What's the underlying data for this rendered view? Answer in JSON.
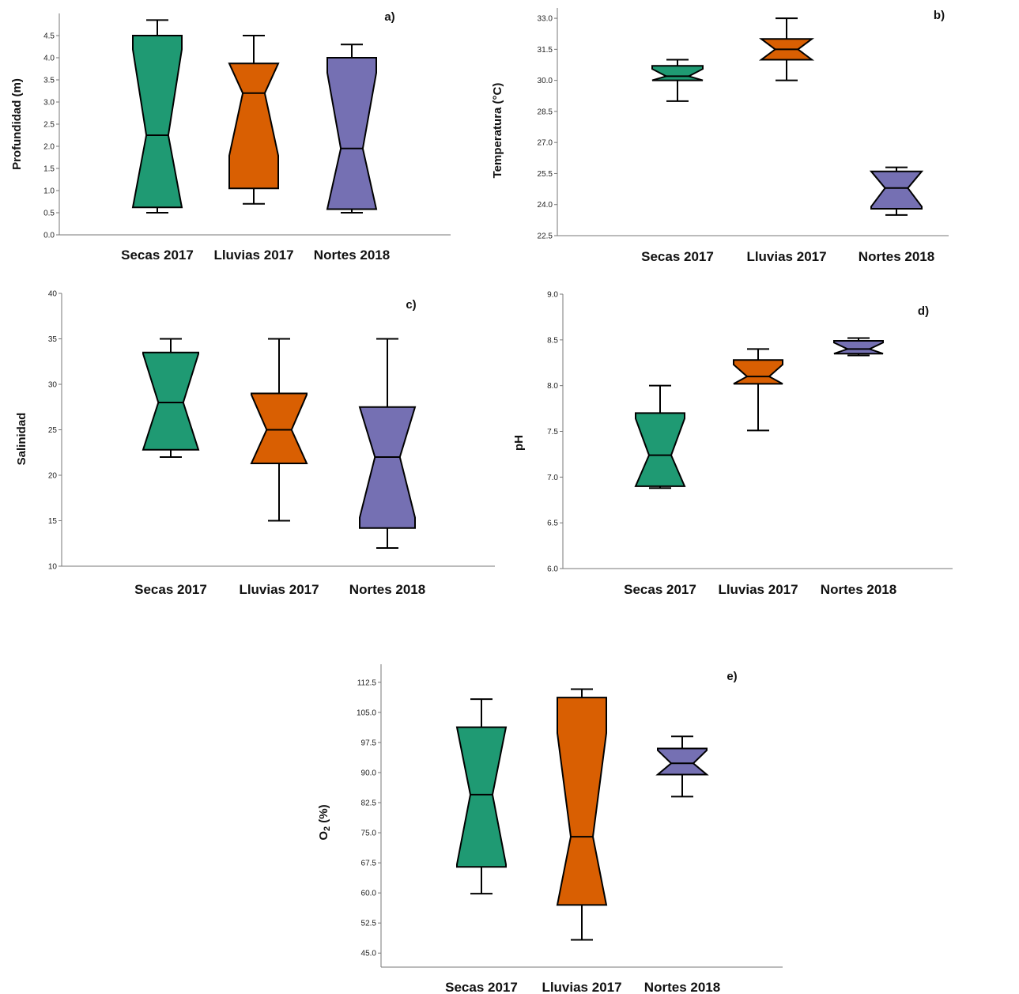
{
  "colors": {
    "Secas 2017": "#1f9a73",
    "Lluvias 2017": "#d95f02",
    "Nortes 2018": "#7570b3",
    "stroke": "#000000"
  },
  "chart_data": [
    {
      "type": "boxplot",
      "panel_label": "a)",
      "ylabel": "Profundidad (m)",
      "categories": [
        "Secas 2017",
        "Lluvias 2017",
        "Nortes 2018"
      ],
      "yticks": [
        "0.0",
        "0.5",
        "1.0",
        "1.5",
        "2.0",
        "2.5",
        "3.0",
        "3.5",
        "4.0",
        "4.5"
      ],
      "ylim": [
        0,
        5.0
      ],
      "boxes": [
        {
          "category": "Secas 2017",
          "min": 0.5,
          "q1": 0.62,
          "median": 2.25,
          "q3": 4.5,
          "max": 4.85
        },
        {
          "category": "Lluvias 2017",
          "min": 0.7,
          "q1": 1.05,
          "median": 3.2,
          "q3": 3.87,
          "max": 4.5
        },
        {
          "category": "Nortes 2018",
          "min": 0.5,
          "q1": 0.58,
          "median": 1.95,
          "q3": 4.0,
          "max": 4.3
        }
      ]
    },
    {
      "type": "boxplot",
      "panel_label": "b)",
      "ylabel": "Temperatura (°C)",
      "categories": [
        "Secas 2017",
        "Lluvias 2017",
        "Nortes 2018"
      ],
      "yticks": [
        "22.5",
        "24.0",
        "25.5",
        "27.0",
        "28.5",
        "30.0",
        "31.5",
        "33.0"
      ],
      "ylim": [
        22.5,
        33.5
      ],
      "boxes": [
        {
          "category": "Secas 2017",
          "min": 29.0,
          "q1": 30.0,
          "median": 30.2,
          "q3": 30.7,
          "max": 31.0
        },
        {
          "category": "Lluvias 2017",
          "min": 30.0,
          "q1": 31.0,
          "median": 31.5,
          "q3": 32.0,
          "max": 33.0
        },
        {
          "category": "Nortes 2018",
          "min": 23.5,
          "q1": 23.8,
          "median": 24.8,
          "q3": 25.6,
          "max": 25.8
        }
      ]
    },
    {
      "type": "boxplot",
      "panel_label": "c)",
      "ylabel": "Salinidad",
      "categories": [
        "Secas 2017",
        "Lluvias 2017",
        "Nortes 2018"
      ],
      "yticks": [
        "10",
        "15",
        "20",
        "25",
        "30",
        "35",
        "40"
      ],
      "ylim": [
        10,
        40
      ],
      "boxes": [
        {
          "category": "Secas 2017",
          "min": 22,
          "q1": 22.8,
          "median": 28,
          "q3": 33.5,
          "max": 35
        },
        {
          "category": "Lluvias 2017",
          "min": 15,
          "q1": 21.3,
          "median": 25,
          "q3": 29,
          "max": 35
        },
        {
          "category": "Nortes 2018",
          "min": 12,
          "q1": 14.2,
          "median": 22,
          "q3": 27.5,
          "max": 35
        }
      ]
    },
    {
      "type": "boxplot",
      "panel_label": "d)",
      "ylabel": "pH",
      "categories": [
        "Secas 2017",
        "Lluvias 2017",
        "Nortes 2018"
      ],
      "yticks": [
        "6.0",
        "6.5",
        "7.0",
        "7.5",
        "8.0",
        "8.5",
        "9.0"
      ],
      "ylim": [
        6.0,
        9.0
      ],
      "boxes": [
        {
          "category": "Secas 2017",
          "min": 6.88,
          "q1": 6.9,
          "median": 7.24,
          "q3": 7.7,
          "max": 8.0
        },
        {
          "category": "Lluvias 2017",
          "min": 7.51,
          "q1": 8.02,
          "median": 8.1,
          "q3": 8.28,
          "max": 8.4
        },
        {
          "category": "Nortes 2018",
          "min": 8.33,
          "q1": 8.35,
          "median": 8.4,
          "q3": 8.49,
          "max": 8.52
        }
      ]
    },
    {
      "type": "boxplot",
      "panel_label": "e)",
      "ylabel": "O2 (%)",
      "categories": [
        "Secas 2017",
        "Lluvias 2017",
        "Nortes 2018"
      ],
      "yticks": [
        "45.0",
        "52.5",
        "60.0",
        "67.5",
        "75.0",
        "82.5",
        "90.0",
        "97.5",
        "105.0",
        "112.5"
      ],
      "ylim": [
        41.5,
        117
      ],
      "boxes": [
        {
          "category": "Secas 2017",
          "min": 59.8,
          "q1": 66.5,
          "median": 84.5,
          "q3": 101.3,
          "max": 108.3
        },
        {
          "category": "Lluvias 2017",
          "min": 48.3,
          "q1": 57.0,
          "median": 74.0,
          "q3": 108.7,
          "max": 110.8
        },
        {
          "category": "Nortes 2018",
          "min": 84.0,
          "q1": 89.5,
          "median": 92.3,
          "q3": 96.0,
          "max": 99.0
        }
      ]
    }
  ]
}
